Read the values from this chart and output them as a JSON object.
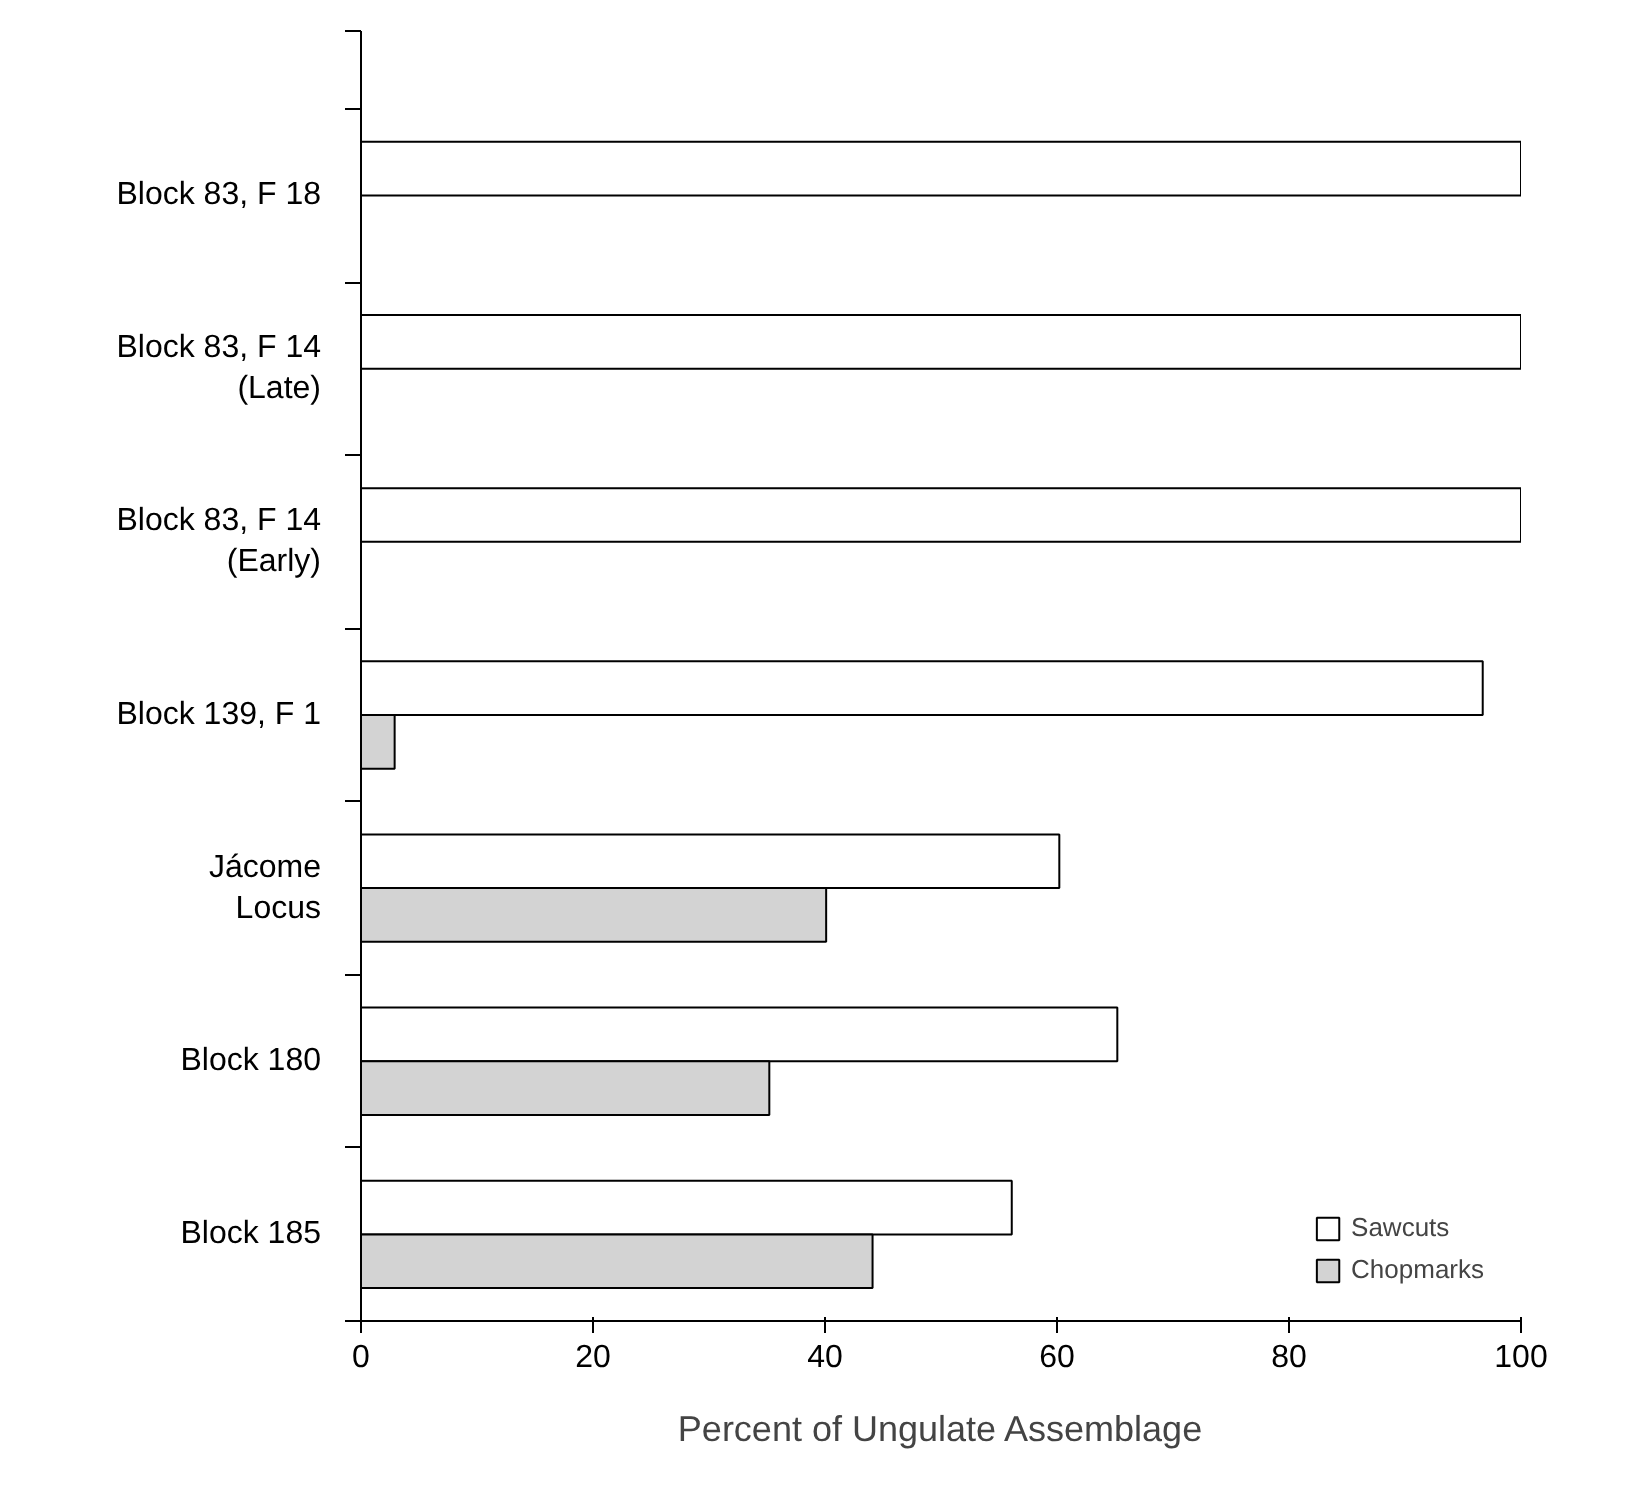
{
  "chart_data": {
    "type": "bar",
    "orientation": "horizontal",
    "xlabel": "Percent of Ungulate Assemblage",
    "categories": [
      "Block 83, F 18",
      "Block 83, F 14\n(Late)",
      "Block 83, F 14\n(Early)",
      "Block 139, F 1",
      "Jácome\nLocus",
      "Block 180",
      "Block 185"
    ],
    "series": [
      {
        "name": "Sawcuts",
        "color": "#ffffff",
        "values": [
          100,
          100,
          100,
          96.7,
          60.2,
          65.2,
          56.1
        ]
      },
      {
        "name": "Chopmarks",
        "color": "#d3d3d3",
        "values": [
          null,
          null,
          null,
          2.9,
          40.1,
          35.2,
          44.1
        ]
      }
    ],
    "xlim": [
      0,
      100
    ],
    "xticks": [
      0,
      20,
      40,
      60,
      80,
      100
    ],
    "grid": false,
    "legend": "bottom right"
  }
}
